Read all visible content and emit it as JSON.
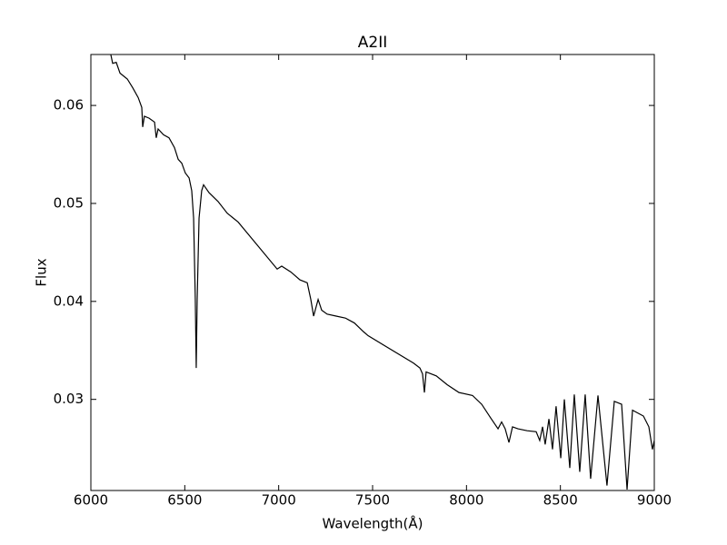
{
  "chart_data": {
    "type": "line",
    "title": "A2II",
    "x_label": "Wavelength(Å)",
    "y_label": "Flux",
    "x": [
      6106,
      6116,
      6135,
      6155,
      6194,
      6223,
      6252,
      6271,
      6276,
      6285,
      6310,
      6339,
      6348,
      6358,
      6387,
      6416,
      6445,
      6465,
      6484,
      6503,
      6523,
      6537,
      6547,
      6556,
      6561,
      6566,
      6576,
      6590,
      6600,
      6629,
      6677,
      6726,
      6784,
      6992,
      7016,
      7065,
      7113,
      7152,
      7171,
      7186,
      7210,
      7229,
      7258,
      7306,
      7355,
      7403,
      7452,
      7476,
      7718,
      7752,
      7766,
      7776,
      7785,
      7839,
      7897,
      7960,
      8032,
      8081,
      8129,
      8168,
      8187,
      8206,
      8226,
      8245,
      8274,
      8323,
      8371,
      8390,
      8405,
      8419,
      8439,
      8458,
      8477,
      8502,
      8521,
      8550,
      8574,
      8603,
      8632,
      8661,
      8700,
      8748,
      8787,
      8826,
      8855,
      8884,
      8942,
      8971,
      8990,
      9000
    ],
    "values": [
      0.0652,
      0.0643,
      0.0644,
      0.0633,
      0.0627,
      0.0618,
      0.0608,
      0.0598,
      0.0578,
      0.0589,
      0.0587,
      0.0583,
      0.0567,
      0.0576,
      0.057,
      0.0567,
      0.0557,
      0.0545,
      0.0541,
      0.0531,
      0.0526,
      0.0513,
      0.0485,
      0.0402,
      0.0332,
      0.0402,
      0.0485,
      0.0513,
      0.0519,
      0.0511,
      0.0502,
      0.049,
      0.0481,
      0.0433,
      0.0436,
      0.043,
      0.0422,
      0.0419,
      0.0402,
      0.0385,
      0.0402,
      0.0391,
      0.0387,
      0.0385,
      0.0383,
      0.0378,
      0.0369,
      0.0365,
      0.0337,
      0.0332,
      0.0326,
      0.0307,
      0.0328,
      0.0324,
      0.0315,
      0.0307,
      0.0304,
      0.0295,
      0.0281,
      0.027,
      0.0277,
      0.027,
      0.0256,
      0.0272,
      0.027,
      0.0268,
      0.0267,
      0.0258,
      0.0272,
      0.0254,
      0.028,
      0.0249,
      0.0293,
      0.024,
      0.03,
      0.023,
      0.0305,
      0.0226,
      0.0305,
      0.0219,
      0.0304,
      0.0212,
      0.0298,
      0.0295,
      0.0208,
      0.0289,
      0.0283,
      0.0272,
      0.0249,
      0.0258
    ],
    "color": "#000000",
    "xlim": [
      6000,
      9000
    ],
    "xticks": [
      6000,
      6500,
      7000,
      7500,
      8000,
      8500,
      9000
    ],
    "ylim": [
      0.0207,
      0.0652
    ],
    "yticks": [
      0.03,
      0.04,
      0.05,
      0.06
    ]
  }
}
